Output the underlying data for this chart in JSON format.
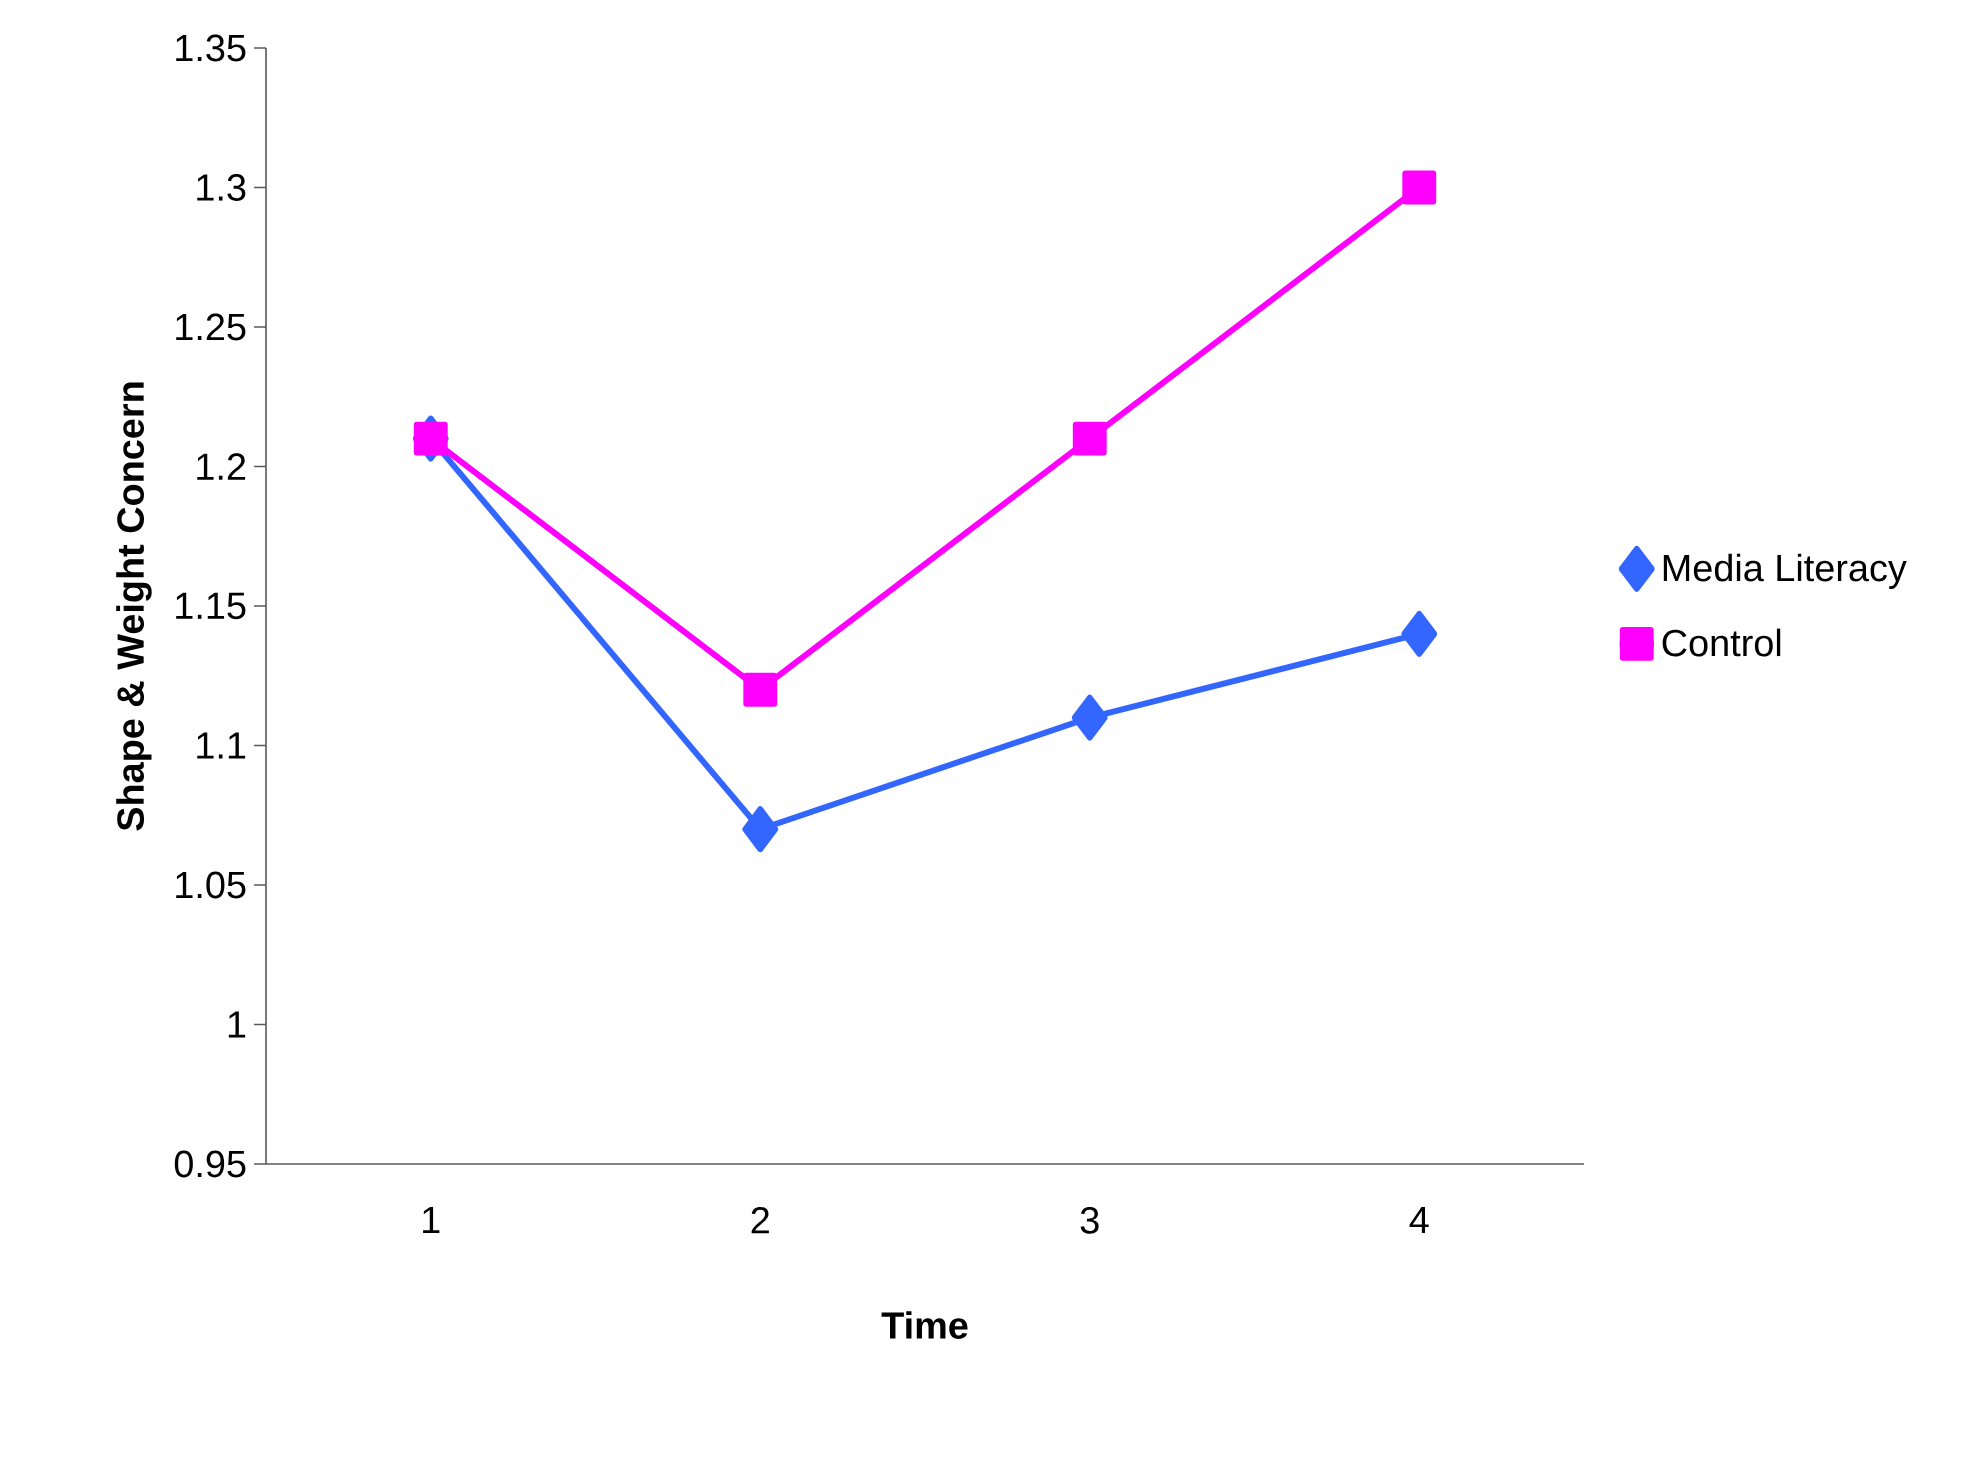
{
  "chart_data": {
    "type": "line",
    "xlabel": "Time",
    "ylabel": "Shape & Weight Concern",
    "categories": [
      "1",
      "2",
      "3",
      "4"
    ],
    "series": [
      {
        "name": "Media Literacy",
        "color": "#3366ff",
        "marker": "diamond",
        "values": [
          1.21,
          1.07,
          1.11,
          1.14
        ]
      },
      {
        "name": "Control",
        "color": "#ff00ff",
        "marker": "square",
        "values": [
          1.21,
          1.12,
          1.21,
          1.3
        ]
      }
    ],
    "ylim": [
      0.95,
      1.35
    ],
    "yticks": [
      0.95,
      1,
      1.05,
      1.1,
      1.15,
      1.2,
      1.25,
      1.3,
      1.35
    ],
    "grid": false,
    "legend": "right"
  }
}
